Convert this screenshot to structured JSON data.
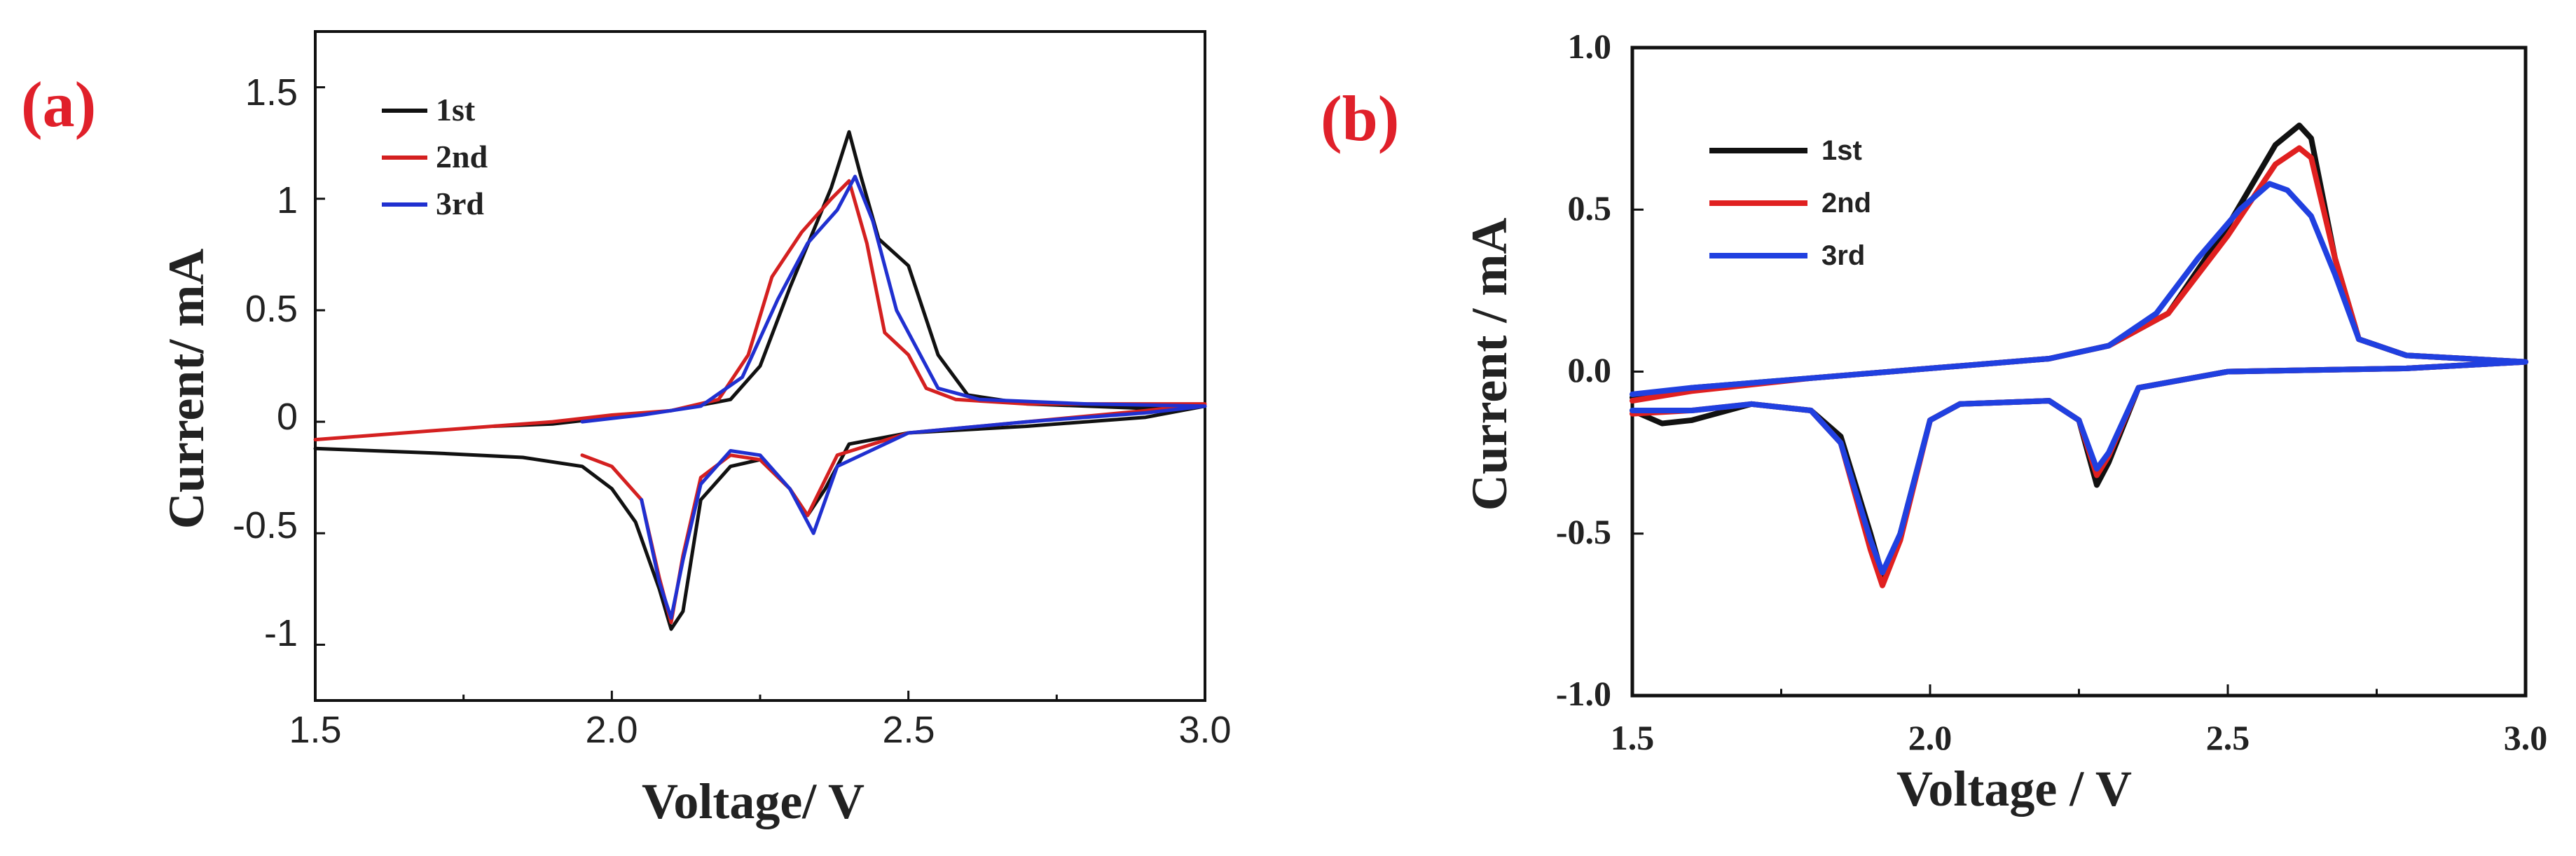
{
  "chart_data": [
    {
      "panel": "(a)",
      "type": "line",
      "title": "",
      "xlabel": "Voltage/ V",
      "ylabel": "Current/ mA",
      "xlim": [
        1.5,
        3.0
      ],
      "ylim": [
        -1.25,
        1.75
      ],
      "x_ticks": [
        "1.5",
        "2.0",
        "2.5",
        "3.0"
      ],
      "y_ticks": [
        "1.5",
        "1",
        "0.5",
        "0",
        "-0.5",
        "-1"
      ],
      "y_tick_values": [
        1.5,
        1,
        0.5,
        0,
        -0.5,
        -1
      ],
      "legend": [
        "1st",
        "2nd",
        "3rd"
      ],
      "legend_placement": "top-left",
      "series": [
        {
          "name": "1st",
          "color": "#111111",
          "points": [
            [
              1.5,
              -0.12
            ],
            [
              1.7,
              -0.14
            ],
            [
              1.85,
              -0.16
            ],
            [
              1.95,
              -0.2
            ],
            [
              2.0,
              -0.3
            ],
            [
              2.04,
              -0.45
            ],
            [
              2.08,
              -0.75
            ],
            [
              2.1,
              -0.93
            ],
            [
              2.12,
              -0.85
            ],
            [
              2.15,
              -0.35
            ],
            [
              2.2,
              -0.2
            ],
            [
              2.25,
              -0.17
            ],
            [
              2.3,
              -0.3
            ],
            [
              2.33,
              -0.42
            ],
            [
              2.36,
              -0.3
            ],
            [
              2.4,
              -0.1
            ],
            [
              2.5,
              -0.05
            ],
            [
              2.7,
              -0.02
            ],
            [
              2.9,
              0.02
            ],
            [
              3.0,
              0.07
            ],
            [
              2.9,
              0.06
            ],
            [
              2.7,
              0.08
            ],
            [
              2.6,
              0.12
            ],
            [
              2.55,
              0.3
            ],
            [
              2.5,
              0.7
            ],
            [
              2.45,
              0.82
            ],
            [
              2.42,
              1.1
            ],
            [
              2.4,
              1.3
            ],
            [
              2.37,
              1.05
            ],
            [
              2.3,
              0.6
            ],
            [
              2.25,
              0.25
            ],
            [
              2.2,
              0.1
            ],
            [
              2.1,
              0.05
            ],
            [
              2.0,
              0.02
            ],
            [
              1.9,
              -0.01
            ],
            [
              1.8,
              -0.02
            ]
          ]
        },
        {
          "name": "2nd",
          "color": "#d42020",
          "points": [
            [
              1.5,
              -0.08
            ],
            [
              1.7,
              -0.04
            ],
            [
              1.9,
              0.0
            ],
            [
              2.0,
              0.03
            ],
            [
              2.1,
              0.05
            ],
            [
              2.18,
              0.1
            ],
            [
              2.23,
              0.3
            ],
            [
              2.27,
              0.65
            ],
            [
              2.32,
              0.85
            ],
            [
              2.37,
              1.0
            ],
            [
              2.4,
              1.08
            ],
            [
              2.43,
              0.8
            ],
            [
              2.46,
              0.4
            ],
            [
              2.5,
              0.3
            ],
            [
              2.53,
              0.15
            ],
            [
              2.58,
              0.1
            ],
            [
              2.7,
              0.08
            ],
            [
              3.0,
              0.08
            ],
            [
              2.9,
              0.05
            ],
            [
              2.7,
              0.0
            ],
            [
              2.5,
              -0.05
            ],
            [
              2.38,
              -0.15
            ],
            [
              2.33,
              -0.42
            ],
            [
              2.3,
              -0.3
            ],
            [
              2.25,
              -0.17
            ],
            [
              2.2,
              -0.15
            ],
            [
              2.15,
              -0.25
            ],
            [
              2.12,
              -0.6
            ],
            [
              2.1,
              -0.9
            ],
            [
              2.08,
              -0.7
            ],
            [
              2.05,
              -0.35
            ],
            [
              2.0,
              -0.2
            ],
            [
              1.95,
              -0.15
            ]
          ]
        },
        {
          "name": "3rd",
          "color": "#2030d0",
          "points": [
            [
              1.95,
              0.0
            ],
            [
              2.05,
              0.03
            ],
            [
              2.15,
              0.07
            ],
            [
              2.22,
              0.2
            ],
            [
              2.28,
              0.55
            ],
            [
              2.33,
              0.8
            ],
            [
              2.38,
              0.95
            ],
            [
              2.41,
              1.1
            ],
            [
              2.44,
              0.9
            ],
            [
              2.48,
              0.5
            ],
            [
              2.52,
              0.3
            ],
            [
              2.55,
              0.15
            ],
            [
              2.62,
              0.1
            ],
            [
              2.8,
              0.08
            ],
            [
              3.0,
              0.07
            ],
            [
              2.9,
              0.04
            ],
            [
              2.7,
              0.0
            ],
            [
              2.5,
              -0.05
            ],
            [
              2.38,
              -0.2
            ],
            [
              2.34,
              -0.5
            ],
            [
              2.3,
              -0.3
            ],
            [
              2.25,
              -0.15
            ],
            [
              2.2,
              -0.13
            ],
            [
              2.15,
              -0.28
            ],
            [
              2.12,
              -0.62
            ],
            [
              2.1,
              -0.88
            ],
            [
              2.08,
              -0.72
            ],
            [
              2.05,
              -0.35
            ]
          ]
        }
      ]
    },
    {
      "panel": "(b)",
      "type": "line",
      "title": "",
      "xlabel": "Voltage / V",
      "ylabel": "Current / mA",
      "xlim": [
        1.5,
        3.0
      ],
      "ylim": [
        -1.0,
        1.0
      ],
      "x_ticks": [
        "1.5",
        "2.0",
        "2.5",
        "3.0"
      ],
      "y_ticks": [
        "1.0",
        "0.5",
        "0.0",
        "-0.5",
        "-1.0"
      ],
      "y_tick_values": [
        1.0,
        0.5,
        0.0,
        -0.5,
        -1.0
      ],
      "legend": [
        "1st",
        "2nd",
        "3rd"
      ],
      "legend_placement": "top-left",
      "series": [
        {
          "name": "1st",
          "color": "#111111",
          "points": [
            [
              1.5,
              -0.12
            ],
            [
              1.55,
              -0.16
            ],
            [
              1.6,
              -0.15
            ],
            [
              1.7,
              -0.1
            ],
            [
              1.8,
              -0.12
            ],
            [
              1.85,
              -0.2
            ],
            [
              1.9,
              -0.5
            ],
            [
              1.92,
              -0.63
            ],
            [
              1.95,
              -0.5
            ],
            [
              2.0,
              -0.15
            ],
            [
              2.05,
              -0.1
            ],
            [
              2.2,
              -0.09
            ],
            [
              2.25,
              -0.15
            ],
            [
              2.28,
              -0.35
            ],
            [
              2.3,
              -0.28
            ],
            [
              2.35,
              -0.05
            ],
            [
              2.5,
              0.0
            ],
            [
              2.8,
              0.01
            ],
            [
              3.0,
              0.03
            ],
            [
              2.9,
              0.04
            ],
            [
              2.8,
              0.05
            ],
            [
              2.72,
              0.1
            ],
            [
              2.68,
              0.35
            ],
            [
              2.64,
              0.72
            ],
            [
              2.62,
              0.76
            ],
            [
              2.58,
              0.7
            ],
            [
              2.5,
              0.45
            ],
            [
              2.4,
              0.18
            ],
            [
              2.3,
              0.08
            ],
            [
              2.2,
              0.04
            ],
            [
              2.0,
              0.01
            ],
            [
              1.8,
              -0.02
            ],
            [
              1.6,
              -0.05
            ],
            [
              1.5,
              -0.08
            ]
          ]
        },
        {
          "name": "2nd",
          "color": "#e02020",
          "points": [
            [
              1.5,
              -0.13
            ],
            [
              1.6,
              -0.12
            ],
            [
              1.7,
              -0.1
            ],
            [
              1.8,
              -0.12
            ],
            [
              1.85,
              -0.22
            ],
            [
              1.9,
              -0.55
            ],
            [
              1.92,
              -0.66
            ],
            [
              1.95,
              -0.52
            ],
            [
              2.0,
              -0.15
            ],
            [
              2.05,
              -0.1
            ],
            [
              2.2,
              -0.09
            ],
            [
              2.25,
              -0.15
            ],
            [
              2.28,
              -0.32
            ],
            [
              2.3,
              -0.26
            ],
            [
              2.35,
              -0.05
            ],
            [
              2.5,
              0.0
            ],
            [
              2.8,
              0.01
            ],
            [
              3.0,
              0.03
            ],
            [
              2.9,
              0.04
            ],
            [
              2.8,
              0.05
            ],
            [
              2.72,
              0.1
            ],
            [
              2.68,
              0.35
            ],
            [
              2.64,
              0.66
            ],
            [
              2.62,
              0.69
            ],
            [
              2.58,
              0.64
            ],
            [
              2.5,
              0.42
            ],
            [
              2.4,
              0.18
            ],
            [
              2.3,
              0.08
            ],
            [
              2.2,
              0.04
            ],
            [
              2.0,
              0.01
            ],
            [
              1.8,
              -0.02
            ],
            [
              1.6,
              -0.06
            ],
            [
              1.5,
              -0.09
            ]
          ]
        },
        {
          "name": "3rd",
          "color": "#2040e0",
          "points": [
            [
              1.5,
              -0.12
            ],
            [
              1.6,
              -0.12
            ],
            [
              1.7,
              -0.1
            ],
            [
              1.8,
              -0.12
            ],
            [
              1.85,
              -0.22
            ],
            [
              1.9,
              -0.52
            ],
            [
              1.92,
              -0.62
            ],
            [
              1.95,
              -0.5
            ],
            [
              2.0,
              -0.15
            ],
            [
              2.05,
              -0.1
            ],
            [
              2.2,
              -0.09
            ],
            [
              2.25,
              -0.15
            ],
            [
              2.28,
              -0.3
            ],
            [
              2.3,
              -0.25
            ],
            [
              2.35,
              -0.05
            ],
            [
              2.5,
              0.0
            ],
            [
              2.8,
              0.01
            ],
            [
              3.0,
              0.03
            ],
            [
              2.9,
              0.04
            ],
            [
              2.8,
              0.05
            ],
            [
              2.72,
              0.1
            ],
            [
              2.68,
              0.3
            ],
            [
              2.64,
              0.48
            ],
            [
              2.6,
              0.56
            ],
            [
              2.57,
              0.58
            ],
            [
              2.52,
              0.5
            ],
            [
              2.45,
              0.35
            ],
            [
              2.38,
              0.18
            ],
            [
              2.3,
              0.08
            ],
            [
              2.2,
              0.04
            ],
            [
              2.0,
              0.01
            ],
            [
              1.8,
              -0.02
            ],
            [
              1.6,
              -0.05
            ],
            [
              1.5,
              -0.07
            ]
          ]
        }
      ]
    }
  ]
}
